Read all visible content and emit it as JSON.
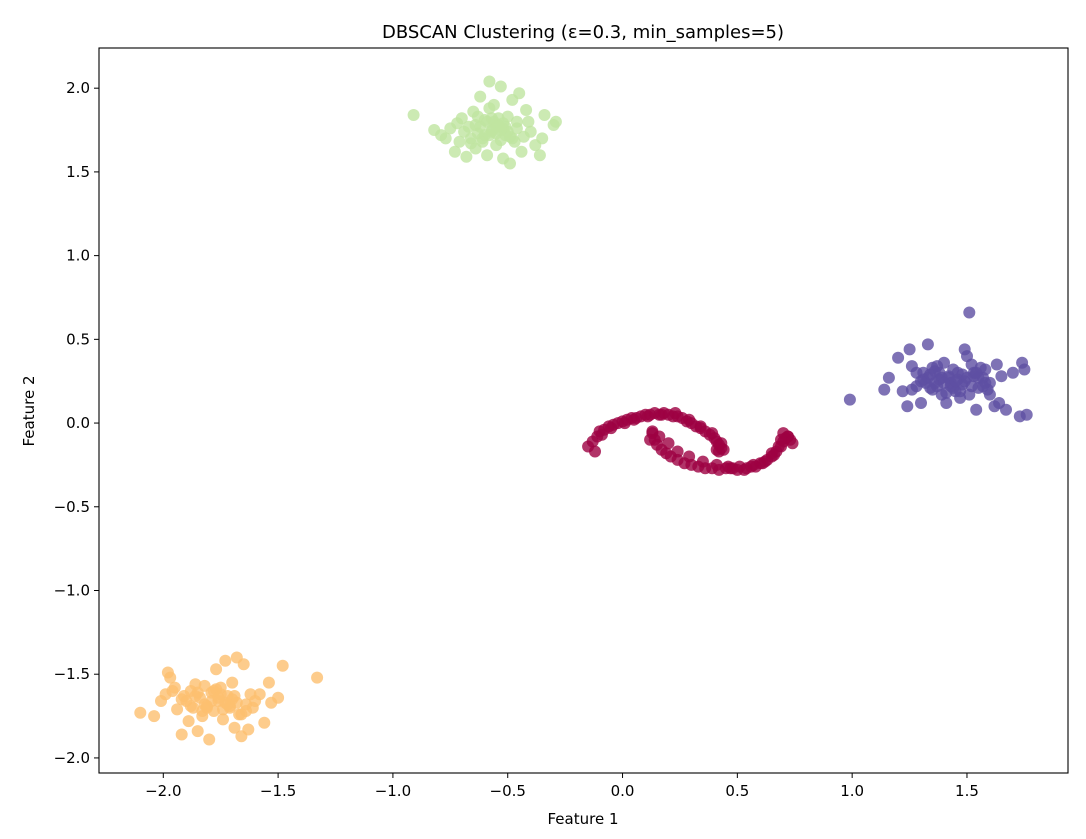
{
  "chart_data": {
    "type": "scatter",
    "title": "DBSCAN Clustering (ε=0.3, min_samples=5)",
    "xlabel": "Feature 1",
    "ylabel": "Feature 2",
    "xlim": [
      -2.28,
      1.94
    ],
    "ylim": [
      -2.09,
      2.24
    ],
    "xticks": [
      -2.0,
      -1.5,
      -1.0,
      -0.5,
      0.0,
      0.5,
      1.0,
      1.5
    ],
    "xtick_labels": [
      "−2.0",
      "−1.5",
      "−1.0",
      "−0.5",
      "0.0",
      "0.5",
      "1.0",
      "1.5"
    ],
    "yticks": [
      -2.0,
      -1.5,
      -1.0,
      -0.5,
      0.0,
      0.5,
      1.0,
      1.5,
      2.0
    ],
    "ytick_labels": [
      "−2.0",
      "−1.5",
      "−1.0",
      "−0.5",
      "0.0",
      "0.5",
      "1.0",
      "1.5",
      "2.0"
    ],
    "grid": false,
    "legend": "none",
    "point_opacity": 0.8,
    "series": [
      {
        "color": "#9e0142",
        "x": [
          -0.15,
          -0.13,
          -0.11,
          -0.1,
          -0.08,
          -0.06,
          -0.04,
          -0.02,
          0.0,
          0.02,
          0.04,
          0.06,
          0.08,
          0.1,
          0.12,
          0.14,
          0.16,
          0.18,
          0.2,
          0.22,
          0.24,
          0.26,
          0.28,
          0.3,
          0.32,
          0.34,
          0.36,
          0.38,
          0.4,
          0.41,
          0.42,
          0.43,
          0.42,
          0.41,
          -0.12,
          -0.09,
          -0.05,
          0.01,
          0.05,
          0.11,
          0.17,
          0.23,
          0.29,
          0.34,
          0.39,
          0.43,
          0.44,
          0.13,
          0.14,
          0.15,
          0.17,
          0.19,
          0.21,
          0.24,
          0.27,
          0.3,
          0.33,
          0.36,
          0.39,
          0.42,
          0.45,
          0.48,
          0.51,
          0.54,
          0.57,
          0.6,
          0.63,
          0.65,
          0.67,
          0.69,
          0.7,
          0.71,
          0.72,
          0.73,
          0.74,
          0.72,
          0.7,
          0.68,
          0.66,
          0.62,
          0.58,
          0.53,
          0.47,
          0.41,
          0.35,
          0.29,
          0.24,
          0.2,
          0.16,
          0.13,
          0.12,
          0.46,
          0.5,
          0.56,
          0.61,
          0.65,
          0.69
        ],
        "y": [
          -0.14,
          -0.11,
          -0.08,
          -0.05,
          -0.04,
          -0.02,
          -0.01,
          0.0,
          0.01,
          0.02,
          0.03,
          0.03,
          0.04,
          0.05,
          0.05,
          0.06,
          0.05,
          0.06,
          0.05,
          0.04,
          0.04,
          0.03,
          0.01,
          0.0,
          -0.02,
          -0.03,
          -0.05,
          -0.07,
          -0.09,
          -0.11,
          -0.13,
          -0.15,
          -0.17,
          -0.16,
          -0.17,
          -0.07,
          -0.03,
          0.0,
          0.02,
          0.04,
          0.05,
          0.06,
          0.02,
          -0.02,
          -0.06,
          -0.12,
          -0.16,
          -0.06,
          -0.1,
          -0.13,
          -0.16,
          -0.18,
          -0.2,
          -0.22,
          -0.24,
          -0.25,
          -0.26,
          -0.27,
          -0.27,
          -0.28,
          -0.27,
          -0.27,
          -0.26,
          -0.27,
          -0.25,
          -0.24,
          -0.22,
          -0.2,
          -0.17,
          -0.14,
          -0.11,
          -0.09,
          -0.08,
          -0.1,
          -0.12,
          -0.08,
          -0.06,
          -0.14,
          -0.19,
          -0.23,
          -0.26,
          -0.28,
          -0.27,
          -0.25,
          -0.23,
          -0.2,
          -0.17,
          -0.12,
          -0.08,
          -0.05,
          -0.1,
          -0.26,
          -0.28,
          -0.26,
          -0.24,
          -0.18,
          -0.1
        ]
      },
      {
        "color": "#5e4fa2",
        "x": [
          0.99,
          1.14,
          1.16,
          1.2,
          1.22,
          1.24,
          1.25,
          1.26,
          1.28,
          1.3,
          1.31,
          1.32,
          1.33,
          1.34,
          1.35,
          1.36,
          1.37,
          1.38,
          1.39,
          1.4,
          1.41,
          1.42,
          1.43,
          1.44,
          1.45,
          1.46,
          1.47,
          1.48,
          1.49,
          1.5,
          1.51,
          1.52,
          1.53,
          1.54,
          1.55,
          1.56,
          1.57,
          1.58,
          1.59,
          1.6,
          1.62,
          1.63,
          1.64,
          1.65,
          1.67,
          1.7,
          1.73,
          1.74,
          1.75,
          1.76,
          1.51,
          1.28,
          1.33,
          1.38,
          1.43,
          1.47,
          1.52,
          1.36,
          1.41,
          1.46,
          1.31,
          1.55,
          1.6,
          1.35,
          1.39,
          1.44,
          1.49,
          1.53,
          1.57,
          1.26,
          1.3,
          1.34,
          1.42,
          1.48,
          1.58,
          1.37,
          1.45,
          1.5,
          1.54,
          1.4
        ],
        "y": [
          0.14,
          0.2,
          0.27,
          0.39,
          0.19,
          0.1,
          0.44,
          0.34,
          0.22,
          0.12,
          0.3,
          0.24,
          0.47,
          0.29,
          0.2,
          0.31,
          0.34,
          0.26,
          0.17,
          0.36,
          0.12,
          0.28,
          0.22,
          0.32,
          0.19,
          0.26,
          0.15,
          0.23,
          0.44,
          0.4,
          0.17,
          0.35,
          0.28,
          0.08,
          0.21,
          0.33,
          0.27,
          0.24,
          0.2,
          0.17,
          0.1,
          0.35,
          0.12,
          0.28,
          0.08,
          0.3,
          0.04,
          0.36,
          0.32,
          0.05,
          0.66,
          0.3,
          0.27,
          0.3,
          0.24,
          0.19,
          0.22,
          0.24,
          0.18,
          0.3,
          0.26,
          0.27,
          0.24,
          0.33,
          0.27,
          0.21,
          0.25,
          0.3,
          0.22,
          0.2,
          0.25,
          0.21,
          0.27,
          0.29,
          0.32,
          0.22,
          0.25,
          0.27,
          0.3,
          0.24
        ]
      },
      {
        "color": "#fdbf6f",
        "x": [
          -2.1,
          -2.04,
          -2.01,
          -1.99,
          -1.98,
          -1.97,
          -1.96,
          -1.95,
          -1.94,
          -1.92,
          -1.91,
          -1.9,
          -1.89,
          -1.88,
          -1.87,
          -1.86,
          -1.85,
          -1.84,
          -1.83,
          -1.82,
          -1.81,
          -1.8,
          -1.79,
          -1.78,
          -1.77,
          -1.76,
          -1.75,
          -1.74,
          -1.73,
          -1.72,
          -1.71,
          -1.7,
          -1.69,
          -1.68,
          -1.67,
          -1.66,
          -1.65,
          -1.64,
          -1.63,
          -1.62,
          -1.61,
          -1.6,
          -1.58,
          -1.56,
          -1.54,
          -1.53,
          -1.5,
          -1.48,
          -1.33,
          -1.86,
          -1.82,
          -1.78,
          -1.74,
          -1.7,
          -1.66,
          -1.79,
          -1.75,
          -1.71,
          -1.83,
          -1.77,
          -1.73,
          -1.69,
          -1.81,
          -1.76,
          -1.72,
          -1.85,
          -1.68,
          -1.92,
          -1.64,
          -1.88
        ],
        "y": [
          -1.73,
          -1.75,
          -1.66,
          -1.62,
          -1.49,
          -1.52,
          -1.6,
          -1.58,
          -1.71,
          -1.86,
          -1.63,
          -1.66,
          -1.78,
          -1.6,
          -1.7,
          -1.56,
          -1.84,
          -1.64,
          -1.75,
          -1.57,
          -1.69,
          -1.89,
          -1.61,
          -1.72,
          -1.47,
          -1.66,
          -1.58,
          -1.77,
          -1.42,
          -1.63,
          -1.7,
          -1.55,
          -1.82,
          -1.4,
          -1.74,
          -1.87,
          -1.44,
          -1.68,
          -1.83,
          -1.62,
          -1.7,
          -1.66,
          -1.62,
          -1.79,
          -1.55,
          -1.67,
          -1.64,
          -1.45,
          -1.52,
          -1.63,
          -1.68,
          -1.6,
          -1.71,
          -1.65,
          -1.74,
          -1.66,
          -1.62,
          -1.69,
          -1.72,
          -1.59,
          -1.67,
          -1.63,
          -1.7,
          -1.64,
          -1.68,
          -1.61,
          -1.67,
          -1.65,
          -1.72,
          -1.69
        ]
      },
      {
        "color": "#bfe5a0",
        "x": [
          -0.91,
          -0.82,
          -0.79,
          -0.77,
          -0.75,
          -0.73,
          -0.72,
          -0.71,
          -0.7,
          -0.69,
          -0.68,
          -0.67,
          -0.66,
          -0.65,
          -0.64,
          -0.63,
          -0.62,
          -0.61,
          -0.6,
          -0.59,
          -0.58,
          -0.57,
          -0.56,
          -0.55,
          -0.54,
          -0.53,
          -0.52,
          -0.51,
          -0.5,
          -0.49,
          -0.48,
          -0.47,
          -0.46,
          -0.45,
          -0.44,
          -0.43,
          -0.42,
          -0.41,
          -0.4,
          -0.38,
          -0.36,
          -0.35,
          -0.34,
          -0.3,
          -0.29,
          -0.58,
          -0.54,
          -0.5,
          -0.62,
          -0.56,
          -0.52,
          -0.6,
          -0.64,
          -0.48,
          -0.57,
          -0.53,
          -0.59,
          -0.55,
          -0.51,
          -0.61,
          -0.66,
          -0.46,
          -0.63,
          -0.49,
          -0.58,
          -0.55,
          -0.52,
          -0.57,
          -0.53
        ],
        "y": [
          1.84,
          1.75,
          1.72,
          1.7,
          1.76,
          1.62,
          1.79,
          1.68,
          1.82,
          1.74,
          1.59,
          1.77,
          1.7,
          1.86,
          1.64,
          1.73,
          1.95,
          1.68,
          1.81,
          1.6,
          2.04,
          1.75,
          1.9,
          1.66,
          1.78,
          2.01,
          1.58,
          1.72,
          1.83,
          1.55,
          1.93,
          1.68,
          1.76,
          1.97,
          1.62,
          1.71,
          1.87,
          1.8,
          1.74,
          1.66,
          1.6,
          1.7,
          1.84,
          1.78,
          1.8,
          1.88,
          1.82,
          1.74,
          1.77,
          1.8,
          1.76,
          1.72,
          1.78,
          1.7,
          1.74,
          1.69,
          1.8,
          1.73,
          1.77,
          1.7,
          1.67,
          1.8,
          1.83,
          1.71,
          1.72,
          1.77,
          1.79,
          1.82,
          1.75
        ]
      }
    ]
  }
}
